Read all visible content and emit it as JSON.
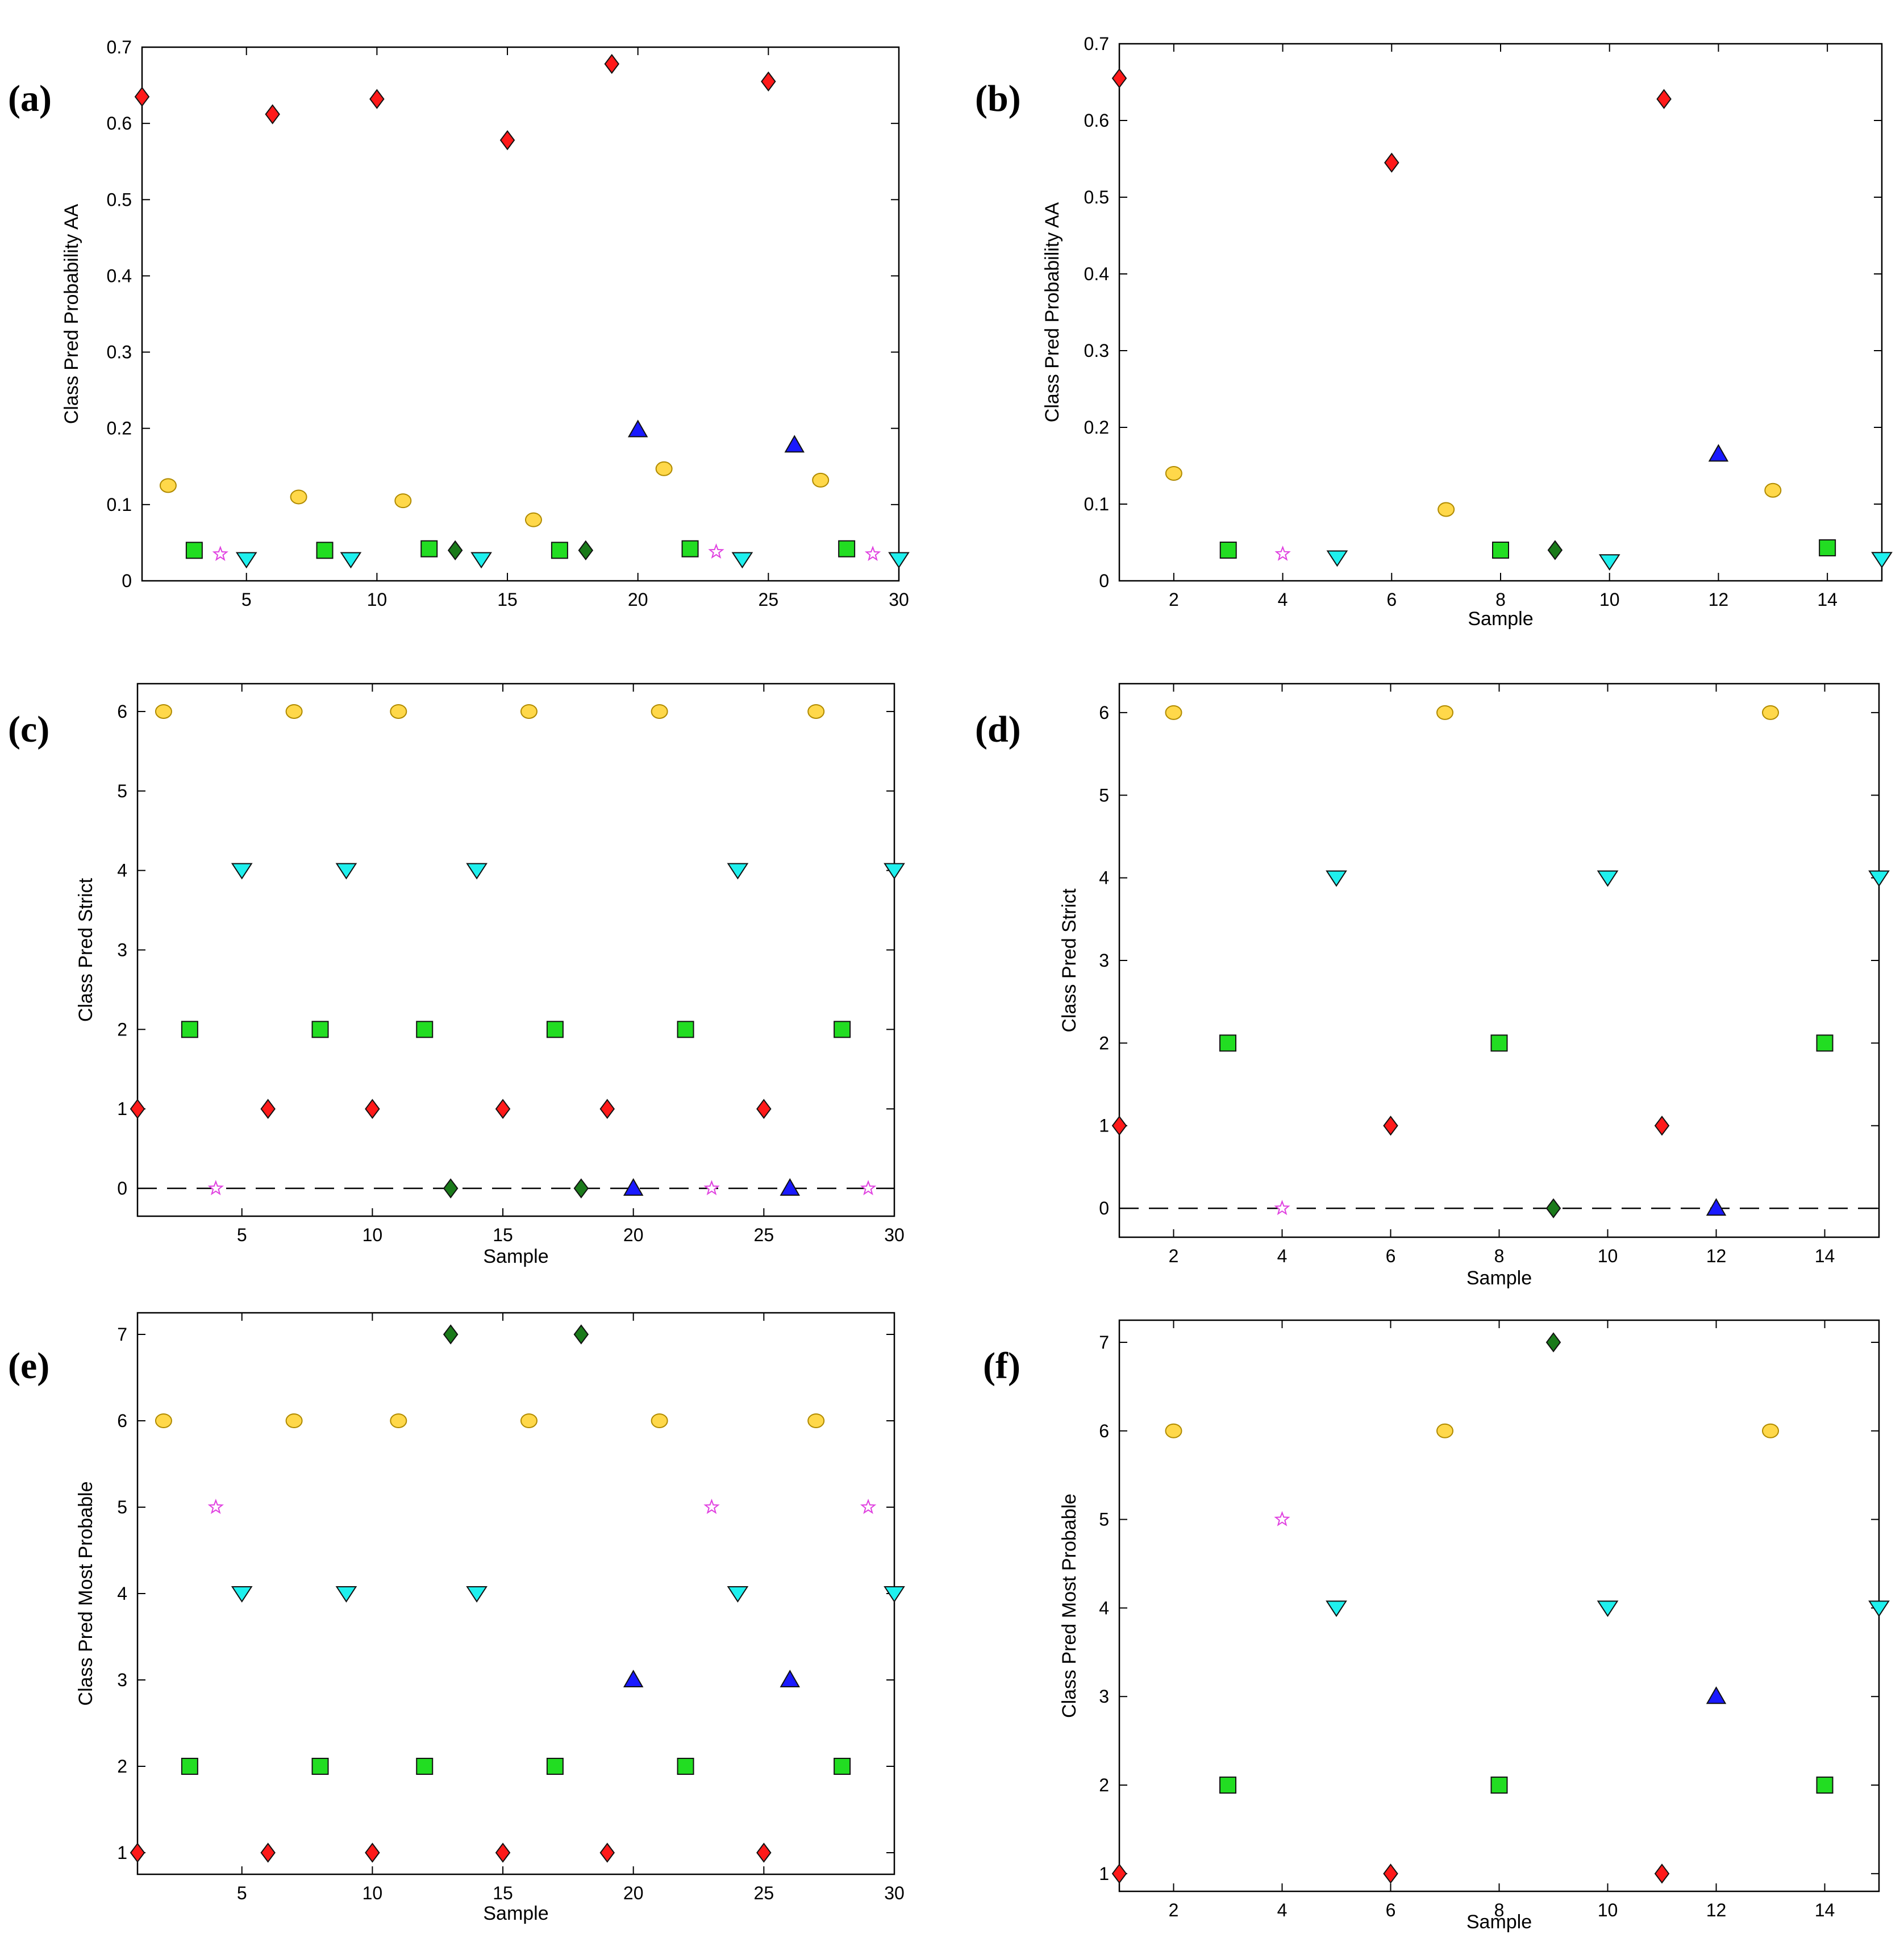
{
  "colors": {
    "class1": "#ff1a1a",
    "class2": "#22dd22",
    "class3": "#1a1aff",
    "class4": "#1ff0ee",
    "class5": "#e040e0",
    "class6": "#ffd84a",
    "class7": "#1a7a1a"
  },
  "chart_data": [
    {
      "id": "a",
      "label": "(a)",
      "type": "scatter",
      "ylabel": "Class Pred Probability AA",
      "xlabel": "",
      "xlim": [
        1,
        30
      ],
      "ylim": [
        0,
        0.7
      ],
      "xticks": [
        5,
        10,
        15,
        20,
        25,
        30
      ],
      "yticks": [
        0,
        0.1,
        0.2,
        0.3,
        0.4,
        0.5,
        0.6,
        0.7
      ],
      "ytick_labels": [
        "0",
        "0.1",
        "0.2",
        "0.3",
        "0.4",
        "0.5",
        "0.6",
        "0.7"
      ],
      "reference_line": null,
      "points": [
        {
          "x": 1,
          "y": 0.635,
          "class": 1
        },
        {
          "x": 2,
          "y": 0.125,
          "class": 6
        },
        {
          "x": 3,
          "y": 0.04,
          "class": 2
        },
        {
          "x": 4,
          "y": 0.035,
          "class": 5
        },
        {
          "x": 5,
          "y": 0.028,
          "class": 4
        },
        {
          "x": 6,
          "y": 0.612,
          "class": 1
        },
        {
          "x": 7,
          "y": 0.11,
          "class": 6
        },
        {
          "x": 8,
          "y": 0.04,
          "class": 2
        },
        {
          "x": 9,
          "y": 0.028,
          "class": 4
        },
        {
          "x": 10,
          "y": 0.632,
          "class": 1
        },
        {
          "x": 11,
          "y": 0.105,
          "class": 6
        },
        {
          "x": 12,
          "y": 0.042,
          "class": 2
        },
        {
          "x": 13,
          "y": 0.04,
          "class": 7
        },
        {
          "x": 14,
          "y": 0.028,
          "class": 4
        },
        {
          "x": 15,
          "y": 0.578,
          "class": 1
        },
        {
          "x": 16,
          "y": 0.08,
          "class": 6
        },
        {
          "x": 17,
          "y": 0.04,
          "class": 2
        },
        {
          "x": 18,
          "y": 0.04,
          "class": 7
        },
        {
          "x": 19,
          "y": 0.678,
          "class": 1
        },
        {
          "x": 20,
          "y": 0.198,
          "class": 3
        },
        {
          "x": 21,
          "y": 0.147,
          "class": 6
        },
        {
          "x": 22,
          "y": 0.042,
          "class": 2
        },
        {
          "x": 23,
          "y": 0.038,
          "class": 5
        },
        {
          "x": 24,
          "y": 0.028,
          "class": 4
        },
        {
          "x": 25,
          "y": 0.655,
          "class": 1
        },
        {
          "x": 26,
          "y": 0.178,
          "class": 3
        },
        {
          "x": 27,
          "y": 0.132,
          "class": 6
        },
        {
          "x": 28,
          "y": 0.042,
          "class": 2
        },
        {
          "x": 29,
          "y": 0.035,
          "class": 5
        },
        {
          "x": 30,
          "y": 0.028,
          "class": 4
        }
      ]
    },
    {
      "id": "b",
      "label": "(b)",
      "type": "scatter",
      "ylabel": "Class Pred Probability AA",
      "xlabel": "Sample",
      "xlim": [
        1,
        15
      ],
      "ylim": [
        0,
        0.7
      ],
      "xticks": [
        2,
        4,
        6,
        8,
        10,
        12,
        14
      ],
      "yticks": [
        0,
        0.1,
        0.2,
        0.3,
        0.4,
        0.5,
        0.6,
        0.7
      ],
      "ytick_labels": [
        "0",
        "0.1",
        "0.2",
        "0.3",
        "0.4",
        "0.5",
        "0.6",
        "0.7"
      ],
      "reference_line": null,
      "points": [
        {
          "x": 1,
          "y": 0.655,
          "class": 1
        },
        {
          "x": 2,
          "y": 0.14,
          "class": 6
        },
        {
          "x": 3,
          "y": 0.04,
          "class": 2
        },
        {
          "x": 4,
          "y": 0.035,
          "class": 5
        },
        {
          "x": 5,
          "y": 0.03,
          "class": 4
        },
        {
          "x": 6,
          "y": 0.545,
          "class": 1
        },
        {
          "x": 7,
          "y": 0.093,
          "class": 6
        },
        {
          "x": 8,
          "y": 0.04,
          "class": 2
        },
        {
          "x": 9,
          "y": 0.04,
          "class": 7
        },
        {
          "x": 10,
          "y": 0.025,
          "class": 4
        },
        {
          "x": 11,
          "y": 0.628,
          "class": 1
        },
        {
          "x": 12,
          "y": 0.165,
          "class": 3
        },
        {
          "x": 13,
          "y": 0.118,
          "class": 6
        },
        {
          "x": 14,
          "y": 0.043,
          "class": 2
        },
        {
          "x": 15,
          "y": 0.028,
          "class": 4
        }
      ]
    },
    {
      "id": "c",
      "label": "(c)",
      "type": "scatter",
      "ylabel": "Class Pred Strict",
      "xlabel": "Sample",
      "xlim": [
        1,
        30
      ],
      "ylim": [
        -0.35,
        6.35
      ],
      "xticks": [
        5,
        10,
        15,
        20,
        25,
        30
      ],
      "yticks": [
        0,
        1,
        2,
        3,
        4,
        5,
        6
      ],
      "ytick_labels": [
        "0",
        "1",
        "2",
        "3",
        "4",
        "5",
        "6"
      ],
      "reference_line": 0,
      "points": [
        {
          "x": 1,
          "y": 1,
          "class": 1
        },
        {
          "x": 2,
          "y": 6,
          "class": 6
        },
        {
          "x": 3,
          "y": 2,
          "class": 2
        },
        {
          "x": 4,
          "y": 0,
          "class": 5
        },
        {
          "x": 5,
          "y": 4,
          "class": 4
        },
        {
          "x": 6,
          "y": 1,
          "class": 1
        },
        {
          "x": 7,
          "y": 6,
          "class": 6
        },
        {
          "x": 8,
          "y": 2,
          "class": 2
        },
        {
          "x": 9,
          "y": 4,
          "class": 4
        },
        {
          "x": 10,
          "y": 1,
          "class": 1
        },
        {
          "x": 11,
          "y": 6,
          "class": 6
        },
        {
          "x": 12,
          "y": 2,
          "class": 2
        },
        {
          "x": 13,
          "y": 0,
          "class": 7
        },
        {
          "x": 14,
          "y": 4,
          "class": 4
        },
        {
          "x": 15,
          "y": 1,
          "class": 1
        },
        {
          "x": 16,
          "y": 6,
          "class": 6
        },
        {
          "x": 17,
          "y": 2,
          "class": 2
        },
        {
          "x": 18,
          "y": 0,
          "class": 7
        },
        {
          "x": 19,
          "y": 1,
          "class": 1
        },
        {
          "x": 20,
          "y": 0,
          "class": 3
        },
        {
          "x": 21,
          "y": 6,
          "class": 6
        },
        {
          "x": 22,
          "y": 2,
          "class": 2
        },
        {
          "x": 23,
          "y": 0,
          "class": 5
        },
        {
          "x": 24,
          "y": 4,
          "class": 4
        },
        {
          "x": 25,
          "y": 1,
          "class": 1
        },
        {
          "x": 26,
          "y": 0,
          "class": 3
        },
        {
          "x": 27,
          "y": 6,
          "class": 6
        },
        {
          "x": 28,
          "y": 2,
          "class": 2
        },
        {
          "x": 29,
          "y": 0,
          "class": 5
        },
        {
          "x": 30,
          "y": 4,
          "class": 4
        }
      ]
    },
    {
      "id": "d",
      "label": "(d)",
      "type": "scatter",
      "ylabel": "Class Pred Strict",
      "xlabel": "Sample",
      "xlim": [
        1,
        15
      ],
      "ylim": [
        -0.35,
        6.35
      ],
      "xticks": [
        2,
        4,
        6,
        8,
        10,
        12,
        14
      ],
      "yticks": [
        0,
        1,
        2,
        3,
        4,
        5,
        6
      ],
      "ytick_labels": [
        "0",
        "1",
        "2",
        "3",
        "4",
        "5",
        "6"
      ],
      "reference_line": 0,
      "points": [
        {
          "x": 1,
          "y": 1,
          "class": 1
        },
        {
          "x": 2,
          "y": 6,
          "class": 6
        },
        {
          "x": 3,
          "y": 2,
          "class": 2
        },
        {
          "x": 4,
          "y": 0,
          "class": 5
        },
        {
          "x": 5,
          "y": 4,
          "class": 4
        },
        {
          "x": 6,
          "y": 1,
          "class": 1
        },
        {
          "x": 7,
          "y": 6,
          "class": 6
        },
        {
          "x": 8,
          "y": 2,
          "class": 2
        },
        {
          "x": 9,
          "y": 0,
          "class": 7
        },
        {
          "x": 10,
          "y": 4,
          "class": 4
        },
        {
          "x": 11,
          "y": 1,
          "class": 1
        },
        {
          "x": 12,
          "y": 0,
          "class": 3
        },
        {
          "x": 13,
          "y": 6,
          "class": 6
        },
        {
          "x": 14,
          "y": 2,
          "class": 2
        },
        {
          "x": 15,
          "y": 4,
          "class": 4
        }
      ]
    },
    {
      "id": "e",
      "label": "(e)",
      "type": "scatter",
      "ylabel": "Class Pred Most Probable",
      "xlabel": "Sample",
      "xlim": [
        1,
        30
      ],
      "ylim": [
        0.75,
        7.25
      ],
      "xticks": [
        5,
        10,
        15,
        20,
        25,
        30
      ],
      "yticks": [
        1,
        2,
        3,
        4,
        5,
        6,
        7
      ],
      "ytick_labels": [
        "1",
        "2",
        "3",
        "4",
        "5",
        "6",
        "7"
      ],
      "reference_line": null,
      "points": [
        {
          "x": 1,
          "y": 1,
          "class": 1
        },
        {
          "x": 2,
          "y": 6,
          "class": 6
        },
        {
          "x": 3,
          "y": 2,
          "class": 2
        },
        {
          "x": 4,
          "y": 5,
          "class": 5
        },
        {
          "x": 5,
          "y": 4,
          "class": 4
        },
        {
          "x": 6,
          "y": 1,
          "class": 1
        },
        {
          "x": 7,
          "y": 6,
          "class": 6
        },
        {
          "x": 8,
          "y": 2,
          "class": 2
        },
        {
          "x": 9,
          "y": 4,
          "class": 4
        },
        {
          "x": 10,
          "y": 1,
          "class": 1
        },
        {
          "x": 11,
          "y": 6,
          "class": 6
        },
        {
          "x": 12,
          "y": 2,
          "class": 2
        },
        {
          "x": 13,
          "y": 7,
          "class": 7
        },
        {
          "x": 14,
          "y": 4,
          "class": 4
        },
        {
          "x": 15,
          "y": 1,
          "class": 1
        },
        {
          "x": 16,
          "y": 6,
          "class": 6
        },
        {
          "x": 17,
          "y": 2,
          "class": 2
        },
        {
          "x": 18,
          "y": 7,
          "class": 7
        },
        {
          "x": 19,
          "y": 1,
          "class": 1
        },
        {
          "x": 20,
          "y": 3,
          "class": 3
        },
        {
          "x": 21,
          "y": 6,
          "class": 6
        },
        {
          "x": 22,
          "y": 2,
          "class": 2
        },
        {
          "x": 23,
          "y": 5,
          "class": 5
        },
        {
          "x": 24,
          "y": 4,
          "class": 4
        },
        {
          "x": 25,
          "y": 1,
          "class": 1
        },
        {
          "x": 26,
          "y": 3,
          "class": 3
        },
        {
          "x": 27,
          "y": 6,
          "class": 6
        },
        {
          "x": 28,
          "y": 2,
          "class": 2
        },
        {
          "x": 29,
          "y": 5,
          "class": 5
        },
        {
          "x": 30,
          "y": 4,
          "class": 4
        }
      ]
    },
    {
      "id": "f",
      "label": "(f)",
      "type": "scatter",
      "ylabel": "Class Pred Most Probable",
      "xlabel": "Sample",
      "xlim": [
        1,
        15
      ],
      "ylim": [
        0.8,
        7.25
      ],
      "xticks": [
        2,
        4,
        6,
        8,
        10,
        12,
        14
      ],
      "yticks": [
        1,
        2,
        3,
        4,
        5,
        6,
        7
      ],
      "ytick_labels": [
        "1",
        "2",
        "3",
        "4",
        "5",
        "6",
        "7"
      ],
      "reference_line": null,
      "points": [
        {
          "x": 1,
          "y": 1,
          "class": 1
        },
        {
          "x": 2,
          "y": 6,
          "class": 6
        },
        {
          "x": 3,
          "y": 2,
          "class": 2
        },
        {
          "x": 4,
          "y": 5,
          "class": 5
        },
        {
          "x": 5,
          "y": 4,
          "class": 4
        },
        {
          "x": 6,
          "y": 1,
          "class": 1
        },
        {
          "x": 7,
          "y": 6,
          "class": 6
        },
        {
          "x": 8,
          "y": 2,
          "class": 2
        },
        {
          "x": 9,
          "y": 7,
          "class": 7
        },
        {
          "x": 10,
          "y": 4,
          "class": 4
        },
        {
          "x": 11,
          "y": 1,
          "class": 1
        },
        {
          "x": 12,
          "y": 3,
          "class": 3
        },
        {
          "x": 13,
          "y": 6,
          "class": 6
        },
        {
          "x": 14,
          "y": 2,
          "class": 2
        },
        {
          "x": 15,
          "y": 4,
          "class": 4
        }
      ]
    }
  ]
}
